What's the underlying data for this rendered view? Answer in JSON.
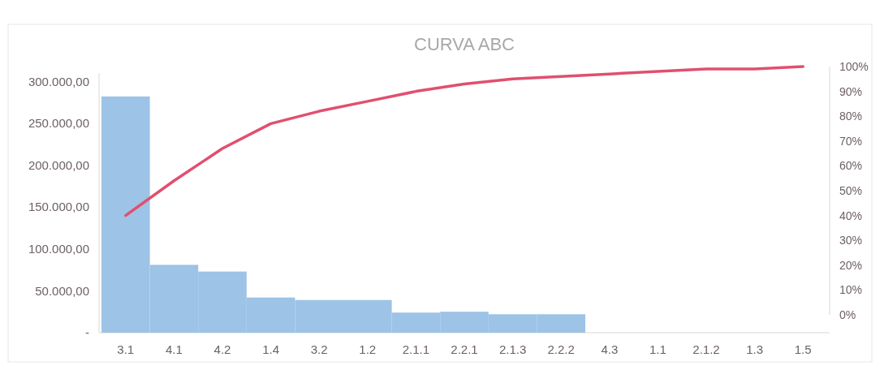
{
  "chart_data": {
    "type": "bar",
    "title": "CURVA ABC",
    "categories": [
      "3.1",
      "4.1",
      "4.2",
      "1.4",
      "3.2",
      "1.2",
      "2.1.1",
      "2.2.1",
      "2.1.3",
      "2.2.2",
      "4.3",
      "1.1",
      "2.1.2",
      "1.3",
      "1.5"
    ],
    "series": [
      {
        "color": "#9dc3e6",
        "values": [
          282000,
          81000,
          73000,
          42000,
          39000,
          39000,
          24000,
          25000,
          22000,
          22000,
          null,
          null,
          null,
          null,
          null
        ]
      },
      {
        "type": "line",
        "axis": "y2",
        "color": "#e0506e",
        "values": [
          40,
          54,
          67,
          77,
          82,
          86,
          90,
          93,
          95,
          96,
          97,
          98,
          99,
          99,
          100
        ]
      }
    ],
    "ylim": [
      0,
      310000
    ],
    "yticks": [
      {
        "value": 0,
        "label": "-"
      },
      {
        "value": 50000,
        "label": "50.000,00"
      },
      {
        "value": 100000,
        "label": "100.000,00"
      },
      {
        "value": 150000,
        "label": "150.000,00"
      },
      {
        "value": 200000,
        "label": "200.000,00"
      },
      {
        "value": 250000,
        "label": "250.000,00"
      },
      {
        "value": 300000,
        "label": "300.000,00"
      }
    ],
    "y2lim": [
      0,
      100
    ],
    "y2ticks": [
      {
        "value": 0,
        "label": "0%"
      },
      {
        "value": 10,
        "label": "10%"
      },
      {
        "value": 20,
        "label": "20%"
      },
      {
        "value": 30,
        "label": "30%"
      },
      {
        "value": 40,
        "label": "40%"
      },
      {
        "value": 50,
        "label": "50%"
      },
      {
        "value": 60,
        "label": "60%"
      },
      {
        "value": 70,
        "label": "70%"
      },
      {
        "value": 80,
        "label": "80%"
      },
      {
        "value": 90,
        "label": "90%"
      },
      {
        "value": 100,
        "label": "100%"
      }
    ],
    "grid": false,
    "marker": "none",
    "line_style": "solid"
  }
}
